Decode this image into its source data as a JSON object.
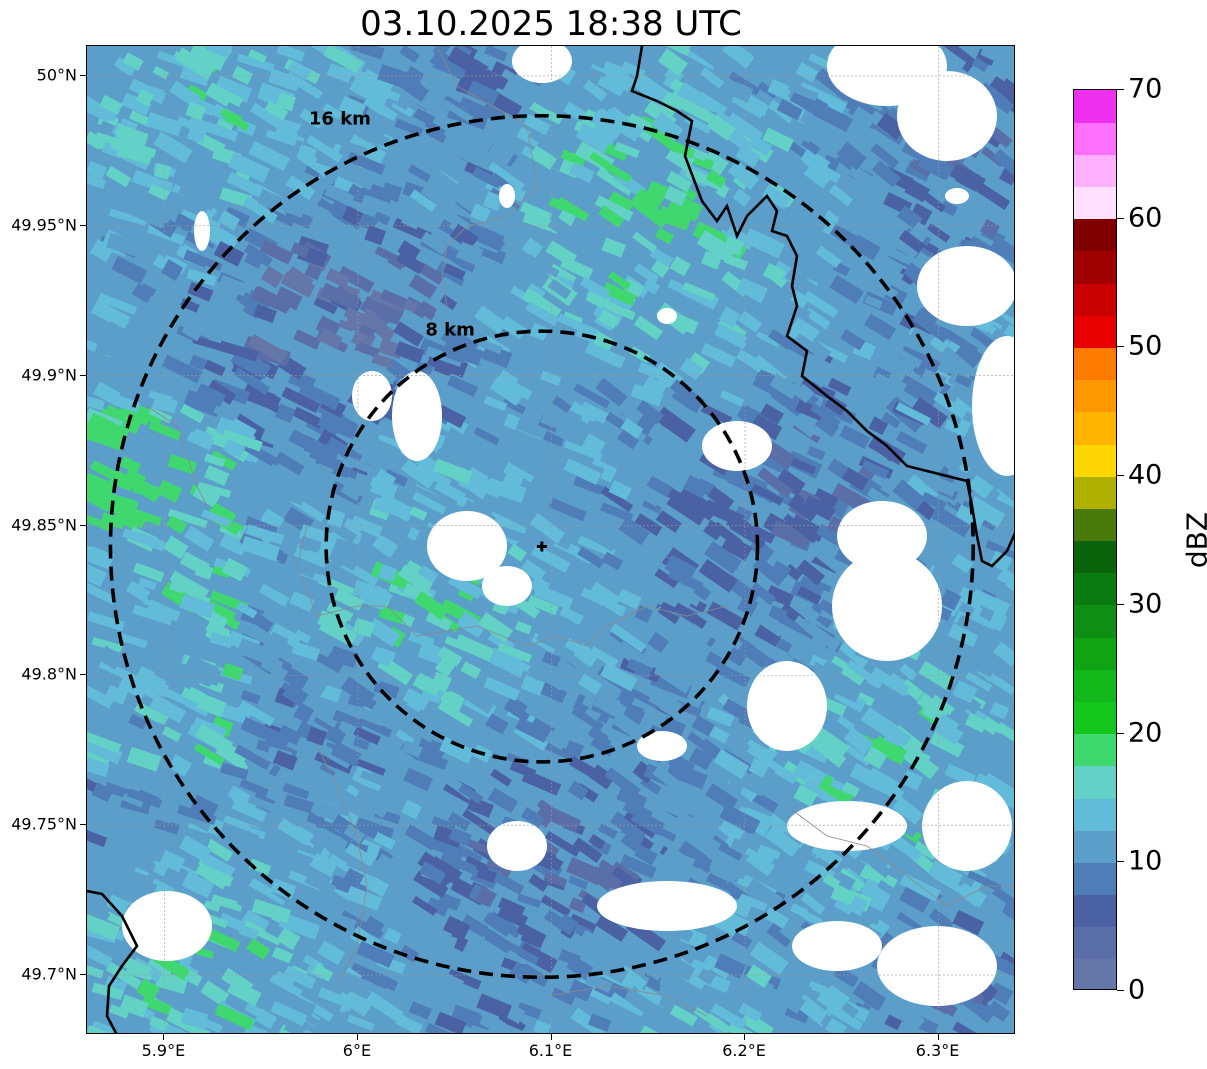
{
  "title": "03.10.2025 18:38 UTC",
  "map": {
    "lon_range": [
      5.86,
      6.34
    ],
    "lat_range": [
      49.68,
      50.01
    ],
    "center": {
      "lon": 6.095,
      "lat": 49.843
    },
    "lat_ticks": [
      {
        "value": 50.0,
        "label": "50°N"
      },
      {
        "value": 49.95,
        "label": "49.95°N"
      },
      {
        "value": 49.9,
        "label": "49.9°N"
      },
      {
        "value": 49.85,
        "label": "49.85°N"
      },
      {
        "value": 49.8,
        "label": "49.8°N"
      },
      {
        "value": 49.75,
        "label": "49.75°N"
      },
      {
        "value": 49.7,
        "label": "49.7°N"
      }
    ],
    "lon_ticks": [
      {
        "value": 5.9,
        "label": "5.9°E"
      },
      {
        "value": 6.0,
        "label": "6°E"
      },
      {
        "value": 6.1,
        "label": "6.1°E"
      },
      {
        "value": 6.2,
        "label": "6.2°E"
      },
      {
        "value": 6.3,
        "label": "6.3°E"
      }
    ],
    "range_rings": [
      {
        "km": 8,
        "label": "8 km"
      },
      {
        "km": 16,
        "label": "16 km"
      }
    ],
    "border_color": "#000000",
    "ring_color": "#000000",
    "field_base_color": "#5b9ec9"
  },
  "colorbar": {
    "label": "dBZ",
    "min": 0,
    "max": 70,
    "tick_labels": [
      {
        "value": 0,
        "label": "0"
      },
      {
        "value": 10,
        "label": "10"
      },
      {
        "value": 20,
        "label": "20"
      },
      {
        "value": 30,
        "label": "30"
      },
      {
        "value": 40,
        "label": "40"
      },
      {
        "value": 50,
        "label": "50"
      },
      {
        "value": 60,
        "label": "60"
      },
      {
        "value": 70,
        "label": "70"
      }
    ],
    "step": 2.5,
    "colors": [
      "#6477a8",
      "#5a6fa8",
      "#4a62a4",
      "#4f7db8",
      "#5b9ec9",
      "#62bbd9",
      "#63d1c6",
      "#3fd86f",
      "#13c71d",
      "#12b81a",
      "#10a415",
      "#0e8e12",
      "#0b7a10",
      "#09640b",
      "#4a7a0a",
      "#b0b000",
      "#ffd700",
      "#ffb400",
      "#ff9800",
      "#ff7b00",
      "#e80000",
      "#c80000",
      "#a00000",
      "#800000",
      "#ffe0ff",
      "#ffb0ff",
      "#ff70ff",
      "#f030f0"
    ]
  }
}
